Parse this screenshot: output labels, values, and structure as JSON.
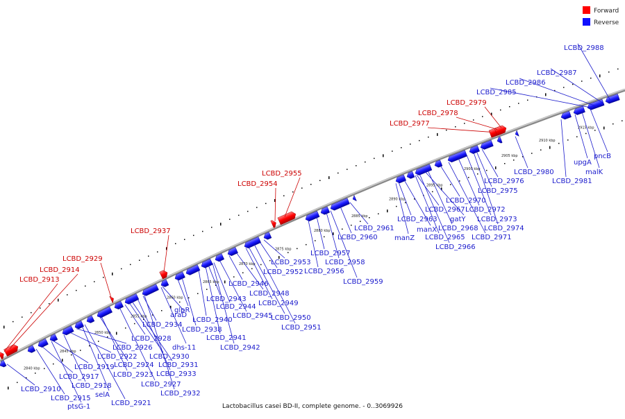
{
  "legend": {
    "forward": {
      "label": "Forward",
      "color": "#ff0000"
    },
    "reverse": {
      "label": "Reverse",
      "color": "#1010ff"
    }
  },
  "caption": "Lactobacillus casei BD-II, complete genome. - 0..3069926",
  "ticks": [
    "2840 kbp",
    "2845 kbp",
    "2850 kbp",
    "2855 kbp",
    "2860 kbp",
    "2865 kbp",
    "2870 kbp",
    "2875 kbp",
    "2880 kbp",
    "2885 kbp",
    "2890 kbp",
    "2895 kbp",
    "2900 kbp",
    "2905 kbp",
    "2910 kbp",
    "2915 kbp"
  ],
  "forward_labels": [
    "LCBD_2913",
    "LCBD_2914",
    "LCBD_2929",
    "LCBD_2937",
    "LCBD_2954",
    "LCBD_2955",
    "LCBD_2977",
    "LCBD_2978",
    "LCBD_2979"
  ],
  "reverse_labels": [
    "LCBD_2910",
    "LCBD_2915",
    "ptsG-1",
    "LCBD_2917",
    "LCBD_2918",
    "LCBD_2919",
    "selA",
    "LCBD_2921",
    "LCBD_2922",
    "LCBD_2923",
    "LCBD_2924",
    "LCBD_2926",
    "LCBD_2927",
    "LCBD_2928",
    "LCBD_2930",
    "LCBD_2931",
    "LCBD_2932",
    "LCBD_2933",
    "LCBD_2934",
    "araD",
    "dhs-11",
    "glpR",
    "LCBD_2938",
    "LCBD_2940",
    "LCBD_2941",
    "LCBD_2942",
    "LCBD_2943",
    "LCBD_2944",
    "LCBD_2945",
    "LCBD_2946",
    "LCBD_2948",
    "LCBD_2949",
    "LCBD_2950",
    "LCBD_2951",
    "LCBD_2952",
    "LCBD_2953",
    "LCBD_2956",
    "LCBD_2957",
    "LCBD_2958",
    "LCBD_2959",
    "LCBD_2960",
    "LCBD_2961",
    "manZ",
    "LCBD_2963",
    "manX",
    "LCBD_2965",
    "LCBD_2966",
    "LCBD_2967",
    "gatY",
    "LCBD_2968",
    "LCBD_2970",
    "LCBD_2971",
    "LCBD_2972",
    "LCBD_2973",
    "LCBD_2974",
    "LCBD_2975",
    "LCBD_2976",
    "LCBD_2980",
    "LCBD_2981",
    "upgA",
    "malK",
    "pncB",
    "LCBD_2985",
    "LCBD_2986",
    "LCBD_2987",
    "LCBD_2988"
  ]
}
